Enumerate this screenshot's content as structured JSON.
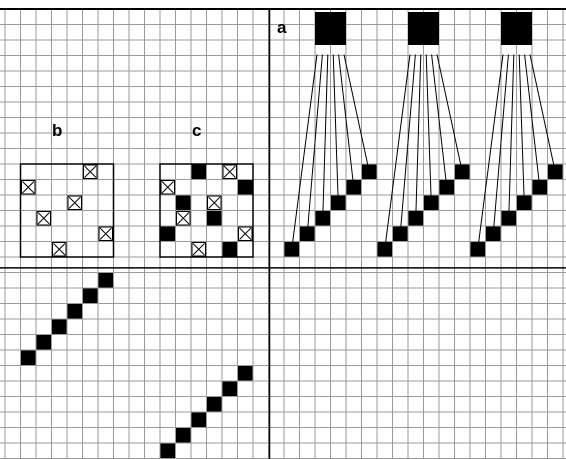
{
  "panels": {
    "a": {
      "label": "a"
    },
    "b": {
      "label": "b"
    },
    "c": {
      "label": "c"
    }
  },
  "grid": {
    "cols": 36,
    "rows": 29,
    "line_color": "#9a9a9a"
  },
  "colors": {
    "ink": "#000000",
    "background": "#ffffff",
    "cross_box": "#ffffff"
  },
  "panel_a": {
    "groups": [
      {
        "hub": [
          20,
          1
        ],
        "squares": [
          [
            18,
            15
          ],
          [
            19,
            14
          ],
          [
            20,
            13
          ],
          [
            21,
            12
          ],
          [
            22,
            11
          ],
          [
            23,
            10
          ]
        ]
      },
      {
        "hub": [
          26,
          1
        ],
        "squares": [
          [
            24,
            15
          ],
          [
            25,
            14
          ],
          [
            26,
            13
          ],
          [
            27,
            12
          ],
          [
            28,
            11
          ],
          [
            29,
            10
          ]
        ]
      },
      {
        "hub": [
          32,
          1
        ],
        "squares": [
          [
            30,
            15
          ],
          [
            31,
            14
          ],
          [
            32,
            13
          ],
          [
            33,
            12
          ],
          [
            34,
            11
          ],
          [
            35,
            10
          ]
        ]
      }
    ]
  },
  "panel_b": {
    "box": {
      "col": 1,
      "row": 10,
      "w": 6,
      "h": 6
    },
    "crosses": [
      [
        5,
        10
      ],
      [
        1,
        11
      ],
      [
        4,
        12
      ],
      [
        2,
        13
      ],
      [
        6,
        14
      ],
      [
        3,
        15
      ]
    ]
  },
  "panel_c": {
    "box": {
      "col": 10,
      "row": 10,
      "w": 6,
      "h": 6
    },
    "filled": [
      [
        12,
        10
      ],
      [
        15,
        11
      ],
      [
        11,
        12
      ],
      [
        13,
        13
      ],
      [
        10,
        14
      ],
      [
        14,
        15
      ]
    ],
    "crosses": [
      [
        14,
        10
      ],
      [
        10,
        11
      ],
      [
        13,
        12
      ],
      [
        11,
        13
      ],
      [
        15,
        14
      ],
      [
        12,
        15
      ]
    ]
  },
  "lower_diagonals": [
    [
      [
        1,
        22
      ],
      [
        2,
        21
      ],
      [
        3,
        20
      ],
      [
        4,
        19
      ],
      [
        5,
        18
      ],
      [
        6,
        17
      ]
    ],
    [
      [
        10,
        28
      ],
      [
        11,
        27
      ],
      [
        12,
        26
      ],
      [
        13,
        25
      ],
      [
        14,
        24
      ],
      [
        15,
        23
      ]
    ]
  ],
  "dividers": {
    "vertical_col": 17,
    "horizontal_row": 16.7
  }
}
